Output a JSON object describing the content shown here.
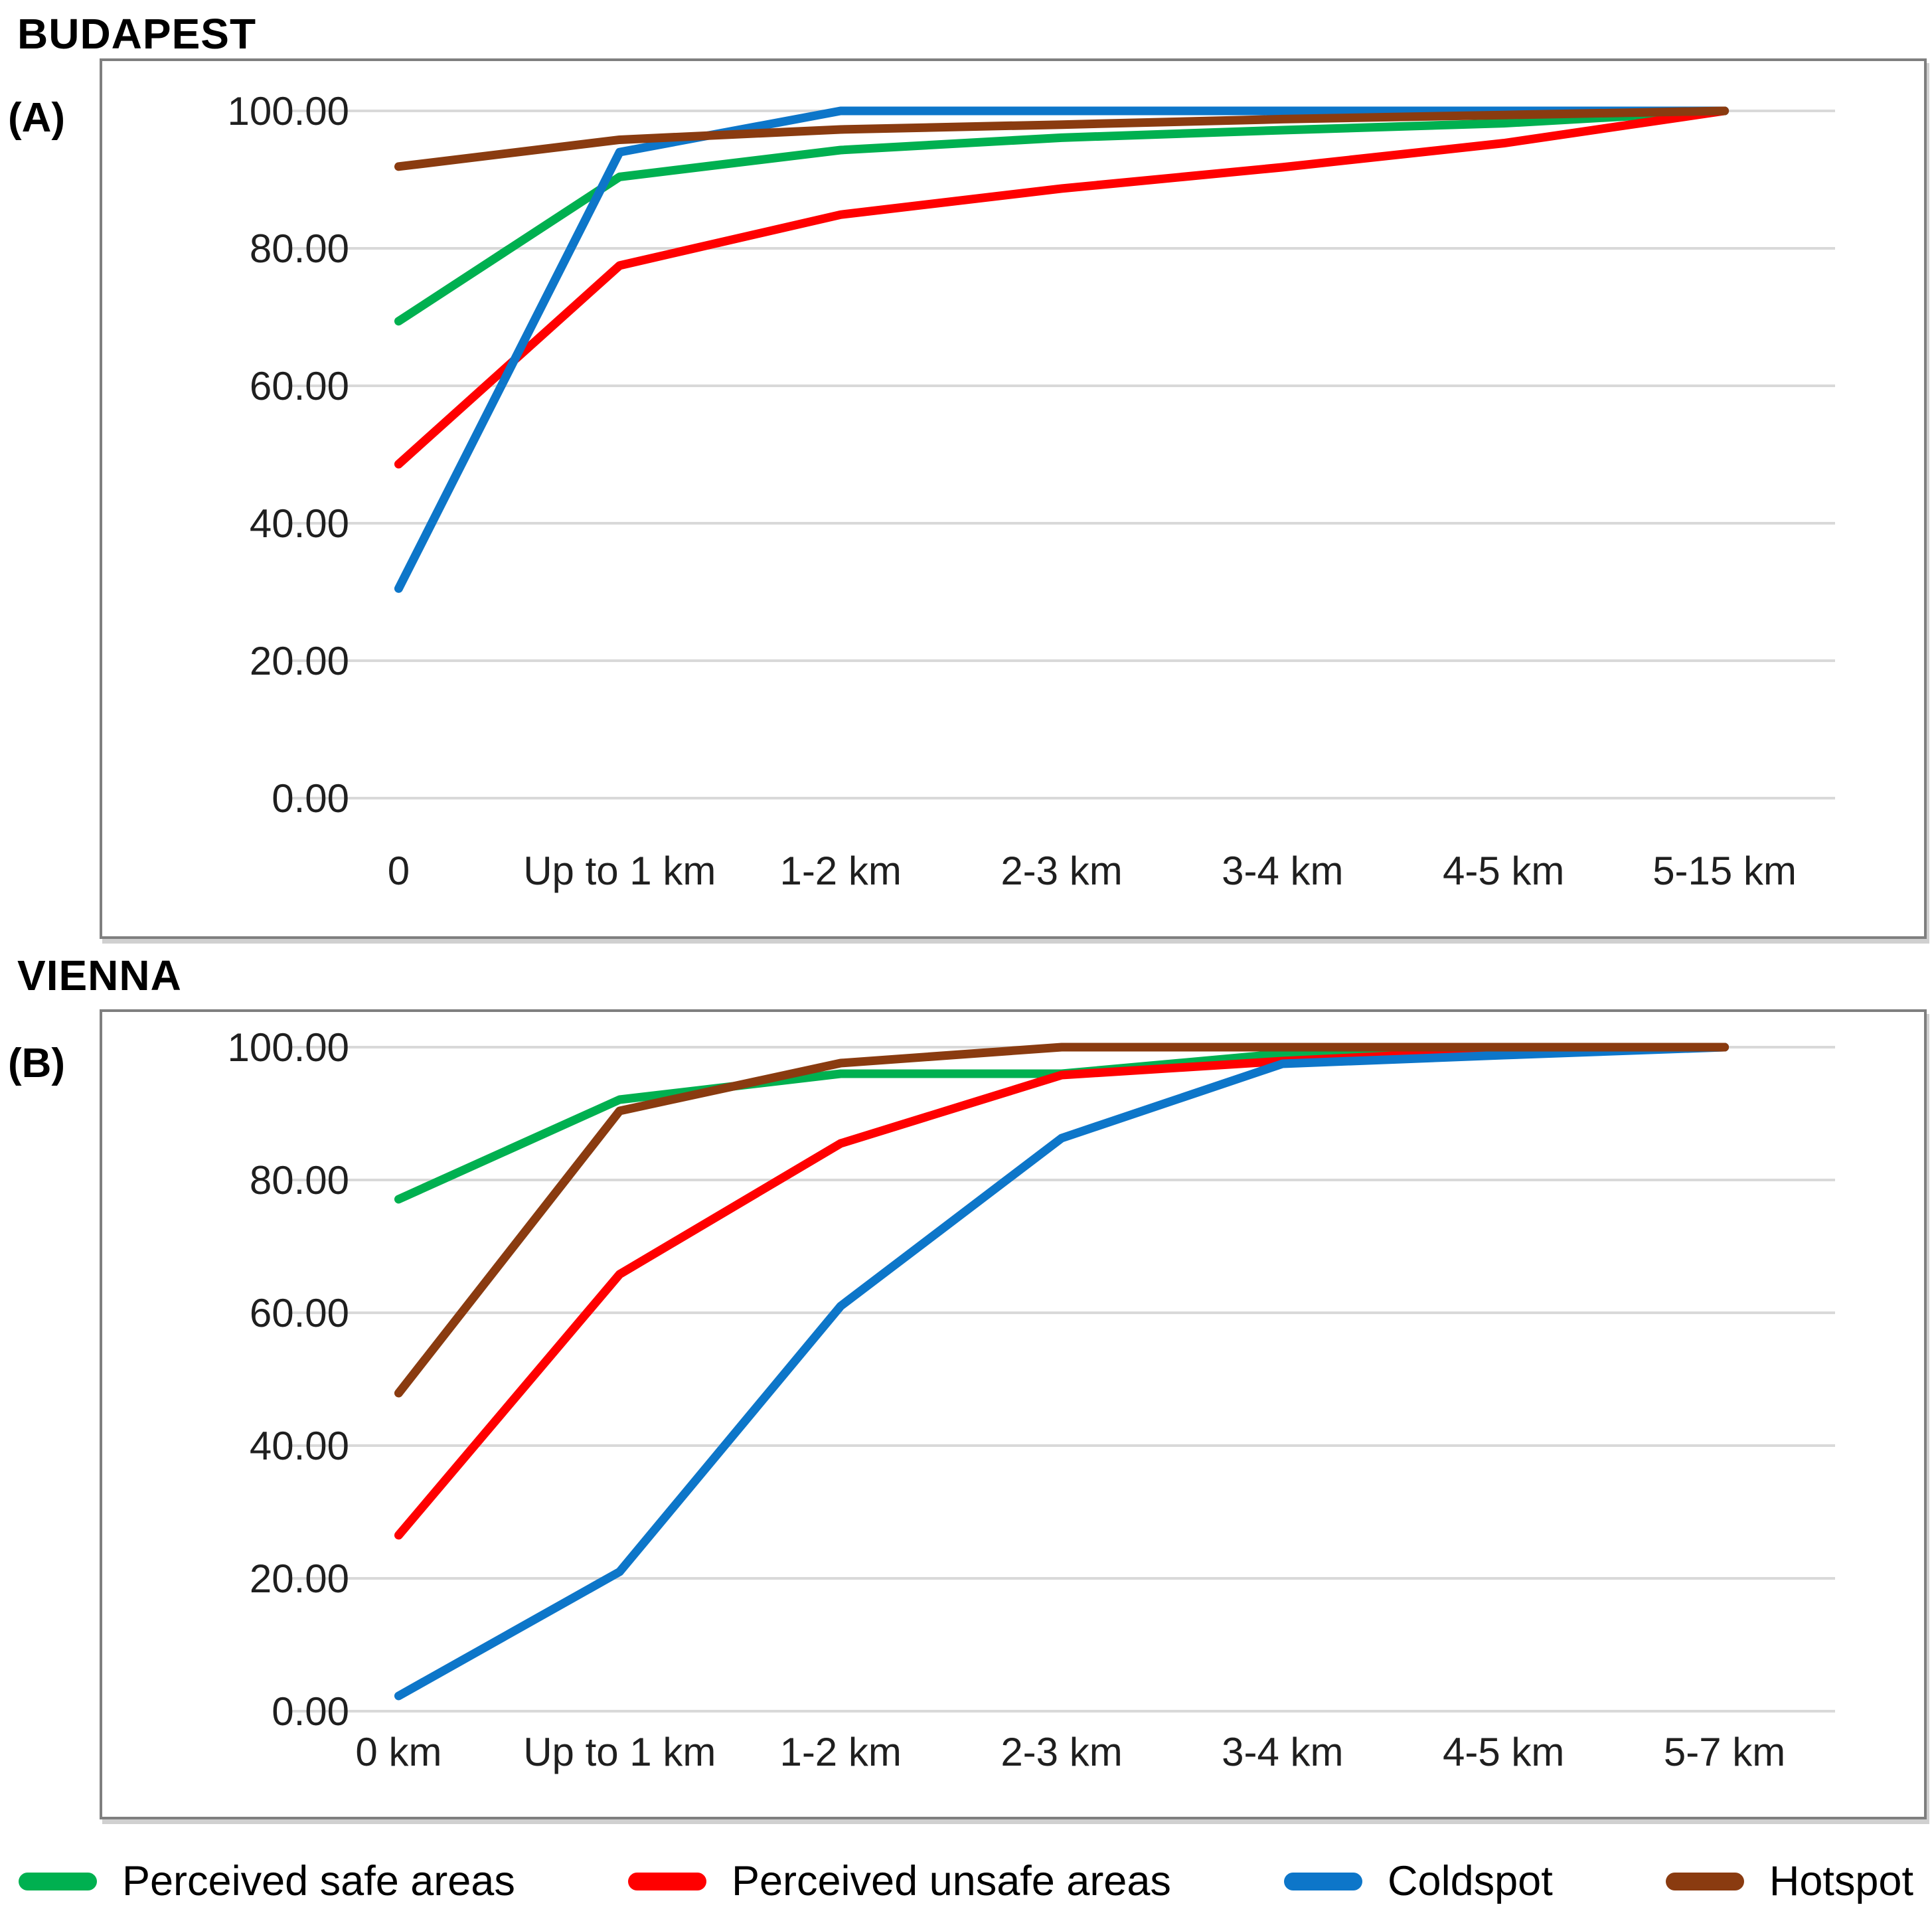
{
  "colors": {
    "safe_green": "#00B050",
    "unsafe_red": "#FF0000",
    "coldspot_blue": "#0D76C9",
    "hotspot_brown": "#8A3B10",
    "gridline": "#D9D9D9",
    "chart_border": "#7F7F7F",
    "axis_text": "#1F1F1F"
  },
  "legend": {
    "items": [
      {
        "label": "Perceived safe areas",
        "color": "#00B050"
      },
      {
        "label": "Perceived unsafe areas",
        "color": "#FF0000"
      },
      {
        "label": "Coldspot",
        "color": "#0D76C9"
      },
      {
        "label": "Hotspot",
        "color": "#8A3B10"
      }
    ]
  },
  "chart_data": [
    {
      "type": "line",
      "title": "BUDAPEST",
      "panel_label": "(A)",
      "categories": [
        "0",
        "Up to 1 km",
        "1-2 km",
        "2-3 km",
        "3-4 km",
        "4-5 km",
        "5-15 km"
      ],
      "series": [
        {
          "name": "Perceived safe areas",
          "color": "#00B050",
          "values": [
            69.4,
            90.4,
            94.3,
            96.1,
            97.2,
            98.2,
            100
          ]
        },
        {
          "name": "Perceived unsafe areas",
          "color": "#FF0000",
          "values": [
            48.6,
            77.5,
            84.9,
            88.7,
            91.8,
            95.3,
            100
          ]
        },
        {
          "name": "Coldspot",
          "color": "#0D76C9",
          "values": [
            30.5,
            94.0,
            100,
            100,
            100,
            100,
            100
          ]
        },
        {
          "name": "Hotspot",
          "color": "#8A3B10",
          "values": [
            91.9,
            95.8,
            97.3,
            98.0,
            98.8,
            99.4,
            100
          ]
        }
      ],
      "xlabel": "",
      "ylabel": "",
      "ylim": [
        0,
        100
      ],
      "y_tick_labels": [
        "100.00",
        "80.00",
        "60.00",
        "40.00",
        "20.00",
        "0.00"
      ],
      "grid": true,
      "legend_position": "shared-bottom"
    },
    {
      "type": "line",
      "title": "VIENNA",
      "panel_label": "(B)",
      "categories": [
        "0 km",
        "Up to 1 km",
        "1-2 km",
        "2-3 km",
        "3-4 km",
        "4-5 km",
        "5-7 km"
      ],
      "series": [
        {
          "name": "Perceived safe areas",
          "color": "#00B050",
          "values": [
            77.1,
            92.1,
            96.0,
            96.0,
            99.0,
            99.8,
            100
          ]
        },
        {
          "name": "Perceived unsafe areas",
          "color": "#FF0000",
          "values": [
            26.5,
            65.8,
            85.5,
            95.8,
            97.9,
            99.5,
            100
          ]
        },
        {
          "name": "Coldspot",
          "color": "#0D76C9",
          "values": [
            2.3,
            21.0,
            61.0,
            86.3,
            97.5,
            98.8,
            100
          ]
        },
        {
          "name": "Hotspot",
          "color": "#8A3B10",
          "values": [
            47.9,
            90.4,
            97.6,
            100,
            100,
            100,
            100
          ]
        }
      ],
      "xlabel": "",
      "ylabel": "",
      "ylim": [
        0,
        100
      ],
      "y_tick_labels": [
        "100.00",
        "80.00",
        "60.00",
        "40.00",
        "20.00",
        "0.00"
      ],
      "grid": true,
      "legend_position": "shared-bottom"
    }
  ]
}
